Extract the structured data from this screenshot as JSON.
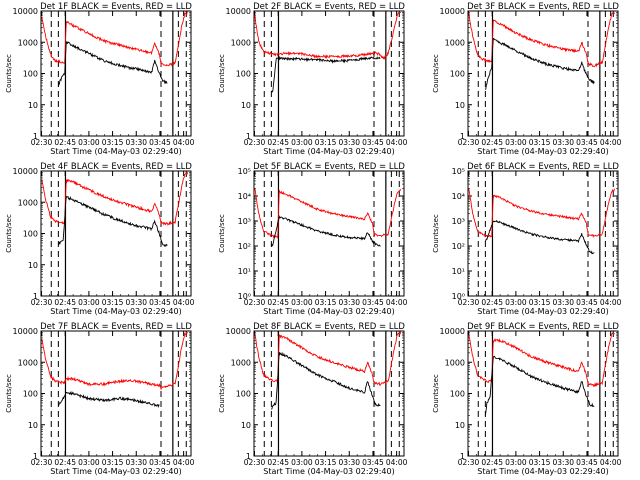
{
  "figure": {
    "xlabel": "Start Time (04-May-03 02:29:40)",
    "ylabel": "Counts/sec",
    "x_ticks": [
      "02:30",
      "02:45",
      "03:00",
      "03:15",
      "03:30",
      "03:45",
      "04:00"
    ]
  },
  "chart_data": [
    {
      "type": "line",
      "title": "Det 1F BLACK = Events, RED = LLD",
      "scale": "log",
      "ylim": [
        1,
        10000
      ],
      "ytick_labels": [
        "1",
        "10",
        "100",
        "1000",
        "10000"
      ],
      "x_unit": "minutes after 02:29:40",
      "lld": [
        [
          0.5,
          6000
        ],
        [
          3,
          1500
        ],
        [
          6,
          400
        ],
        [
          9,
          260
        ],
        [
          12,
          240
        ],
        [
          15,
          220
        ],
        [
          16,
          4500
        ],
        [
          20,
          3500
        ],
        [
          30,
          1900
        ],
        [
          40,
          1100
        ],
        [
          50,
          800
        ],
        [
          60,
          600
        ],
        [
          70,
          450
        ],
        [
          72,
          900
        ],
        [
          75,
          400
        ],
        [
          76,
          200
        ],
        [
          80,
          180
        ],
        [
          85,
          220
        ],
        [
          89,
          3000
        ],
        [
          91,
          8000
        ],
        [
          93,
          9000
        ]
      ],
      "events": [
        [
          11,
          40
        ],
        [
          12,
          55
        ],
        [
          13,
          70
        ],
        [
          14,
          90
        ],
        [
          15,
          100
        ],
        [
          16,
          1000
        ],
        [
          20,
          800
        ],
        [
          30,
          450
        ],
        [
          40,
          250
        ],
        [
          50,
          180
        ],
        [
          60,
          140
        ],
        [
          70,
          110
        ],
        [
          72,
          250
        ],
        [
          75,
          100
        ],
        [
          77,
          60
        ],
        [
          80,
          50
        ]
      ]
    },
    {
      "type": "line",
      "title": "Det 2F BLACK = Events, RED = LLD",
      "scale": "log",
      "ylim": [
        1,
        10000
      ],
      "ytick_labels": [
        "1",
        "10",
        "100",
        "1000",
        "10000"
      ],
      "x_unit": "minutes after 02:29:40",
      "lld": [
        [
          0.5,
          7000
        ],
        [
          3,
          1000
        ],
        [
          6,
          500
        ],
        [
          10,
          450
        ],
        [
          15,
          400
        ],
        [
          20,
          450
        ],
        [
          30,
          420
        ],
        [
          40,
          350
        ],
        [
          50,
          350
        ],
        [
          60,
          360
        ],
        [
          70,
          400
        ],
        [
          77,
          450
        ],
        [
          80,
          400
        ],
        [
          82,
          300
        ],
        [
          85,
          450
        ],
        [
          89,
          3000
        ],
        [
          91,
          8000
        ],
        [
          93,
          9000
        ]
      ],
      "events": [
        [
          11,
          25
        ],
        [
          12,
          30
        ],
        [
          14,
          280
        ],
        [
          16,
          300
        ],
        [
          20,
          300
        ],
        [
          30,
          290
        ],
        [
          40,
          270
        ],
        [
          50,
          250
        ],
        [
          60,
          260
        ],
        [
          70,
          300
        ],
        [
          77,
          320
        ],
        [
          80,
          300
        ]
      ]
    },
    {
      "type": "line",
      "title": "Det 3F BLACK = Events, RED = LLD",
      "scale": "log",
      "ylim": [
        1,
        10000
      ],
      "ytick_labels": [
        "1",
        "10",
        "100",
        "1000",
        "10000"
      ],
      "x_unit": "minutes after 02:29:40",
      "lld": [
        [
          0.5,
          8000
        ],
        [
          3,
          1500
        ],
        [
          6,
          400
        ],
        [
          9,
          300
        ],
        [
          12,
          250
        ],
        [
          15,
          250
        ],
        [
          16,
          5000
        ],
        [
          20,
          4000
        ],
        [
          30,
          2000
        ],
        [
          40,
          1200
        ],
        [
          50,
          800
        ],
        [
          60,
          600
        ],
        [
          70,
          500
        ],
        [
          72,
          1000
        ],
        [
          75,
          400
        ],
        [
          76,
          200
        ],
        [
          80,
          180
        ],
        [
          85,
          220
        ],
        [
          89,
          3000
        ],
        [
          91,
          8000
        ],
        [
          93,
          9000
        ]
      ],
      "events": [
        [
          11,
          30
        ],
        [
          12,
          50
        ],
        [
          13,
          80
        ],
        [
          15,
          150
        ],
        [
          16,
          1300
        ],
        [
          20,
          1000
        ],
        [
          30,
          550
        ],
        [
          40,
          300
        ],
        [
          50,
          200
        ],
        [
          60,
          150
        ],
        [
          70,
          120
        ],
        [
          72,
          220
        ],
        [
          75,
          90
        ],
        [
          77,
          60
        ],
        [
          80,
          50
        ]
      ]
    },
    {
      "type": "line",
      "title": "Det 4F BLACK = Events, RED = LLD",
      "scale": "log",
      "ylim": [
        1,
        10000
      ],
      "ytick_labels": [
        "1",
        "10",
        "100",
        "1000",
        "10000"
      ],
      "x_unit": "minutes after 02:29:40",
      "lld": [
        [
          0.5,
          5000
        ],
        [
          3,
          1200
        ],
        [
          6,
          350
        ],
        [
          9,
          250
        ],
        [
          12,
          220
        ],
        [
          15,
          220
        ],
        [
          16,
          5000
        ],
        [
          20,
          4500
        ],
        [
          30,
          2500
        ],
        [
          40,
          1500
        ],
        [
          50,
          1000
        ],
        [
          60,
          700
        ],
        [
          70,
          500
        ],
        [
          72,
          900
        ],
        [
          75,
          400
        ],
        [
          76,
          220
        ],
        [
          80,
          200
        ],
        [
          85,
          240
        ],
        [
          89,
          3000
        ],
        [
          91,
          8000
        ],
        [
          93,
          9000
        ]
      ],
      "events": [
        [
          11,
          45
        ],
        [
          12,
          50
        ],
        [
          14,
          60
        ],
        [
          16,
          1500
        ],
        [
          20,
          1200
        ],
        [
          30,
          700
        ],
        [
          40,
          400
        ],
        [
          50,
          260
        ],
        [
          60,
          180
        ],
        [
          70,
          140
        ],
        [
          72,
          240
        ],
        [
          75,
          100
        ],
        [
          77,
          45
        ],
        [
          80,
          40
        ]
      ]
    },
    {
      "type": "line",
      "title": "Det 5F BLACK = Events, RED = LLD",
      "scale": "log",
      "ylim": [
        1,
        100000
      ],
      "ytick_labels": [
        "10⁰",
        "10¹",
        "10²",
        "10³",
        "10⁴",
        "10⁵"
      ],
      "x_unit": "minutes after 02:29:40",
      "lld": [
        [
          0.5,
          20000
        ],
        [
          3,
          2000
        ],
        [
          6,
          400
        ],
        [
          9,
          300
        ],
        [
          12,
          250
        ],
        [
          15,
          220
        ],
        [
          16,
          15000
        ],
        [
          20,
          12000
        ],
        [
          30,
          6000
        ],
        [
          40,
          3000
        ],
        [
          50,
          2000
        ],
        [
          60,
          1500
        ],
        [
          70,
          1200
        ],
        [
          72,
          2000
        ],
        [
          75,
          800
        ],
        [
          76,
          300
        ],
        [
          80,
          250
        ],
        [
          85,
          300
        ],
        [
          89,
          5000
        ],
        [
          91,
          15000
        ],
        [
          93,
          18000
        ]
      ],
      "events": [
        [
          11,
          100
        ],
        [
          12,
          120
        ],
        [
          16,
          1500
        ],
        [
          20,
          1200
        ],
        [
          30,
          700
        ],
        [
          40,
          400
        ],
        [
          50,
          280
        ],
        [
          60,
          220
        ],
        [
          70,
          200
        ],
        [
          72,
          350
        ],
        [
          75,
          150
        ],
        [
          77,
          120
        ],
        [
          80,
          100
        ]
      ]
    },
    {
      "type": "line",
      "title": "Det 6F BLACK = Events, RED = LLD",
      "scale": "log",
      "ylim": [
        1,
        100000
      ],
      "ytick_labels": [
        "10⁰",
        "10¹",
        "10²",
        "10³",
        "10⁴",
        "10⁵"
      ],
      "x_unit": "minutes after 02:29:40",
      "lld": [
        [
          0.5,
          20000
        ],
        [
          3,
          2000
        ],
        [
          6,
          400
        ],
        [
          9,
          300
        ],
        [
          12,
          250
        ],
        [
          15,
          250
        ],
        [
          16,
          10000
        ],
        [
          20,
          9000
        ],
        [
          30,
          4000
        ],
        [
          40,
          2500
        ],
        [
          50,
          1800
        ],
        [
          60,
          1500
        ],
        [
          70,
          1200
        ],
        [
          72,
          2000
        ],
        [
          75,
          800
        ],
        [
          76,
          300
        ],
        [
          80,
          250
        ],
        [
          85,
          300
        ],
        [
          89,
          5000
        ],
        [
          91,
          15000
        ],
        [
          93,
          18000
        ]
      ],
      "events": [
        [
          11,
          150
        ],
        [
          12,
          200
        ],
        [
          13,
          300
        ],
        [
          16,
          1000
        ],
        [
          20,
          900
        ],
        [
          30,
          500
        ],
        [
          40,
          300
        ],
        [
          50,
          220
        ],
        [
          60,
          180
        ],
        [
          70,
          160
        ],
        [
          72,
          300
        ],
        [
          75,
          110
        ],
        [
          77,
          60
        ],
        [
          80,
          50
        ]
      ]
    },
    {
      "type": "line",
      "title": "Det 7F BLACK = Events, RED = LLD",
      "scale": "log",
      "ylim": [
        1,
        10000
      ],
      "ytick_labels": [
        "1",
        "10",
        "100",
        "1000",
        "10000"
      ],
      "x_unit": "minutes after 02:29:40",
      "lld": [
        [
          0.5,
          6000
        ],
        [
          3,
          1200
        ],
        [
          6,
          350
        ],
        [
          9,
          250
        ],
        [
          12,
          230
        ],
        [
          15,
          220
        ],
        [
          16,
          300
        ],
        [
          20,
          300
        ],
        [
          30,
          200
        ],
        [
          40,
          200
        ],
        [
          50,
          250
        ],
        [
          60,
          250
        ],
        [
          70,
          200
        ],
        [
          75,
          180
        ],
        [
          76,
          150
        ],
        [
          80,
          180
        ],
        [
          85,
          200
        ],
        [
          89,
          3000
        ],
        [
          91,
          8000
        ],
        [
          93,
          9000
        ]
      ],
      "events": [
        [
          11,
          40
        ],
        [
          12,
          50
        ],
        [
          13,
          60
        ],
        [
          16,
          100
        ],
        [
          20,
          100
        ],
        [
          30,
          70
        ],
        [
          40,
          60
        ],
        [
          50,
          70
        ],
        [
          60,
          60
        ],
        [
          70,
          45
        ],
        [
          75,
          40
        ]
      ]
    },
    {
      "type": "line",
      "title": "Det 8F BLACK = Events, RED = LLD",
      "scale": "log",
      "ylim": [
        1,
        10000
      ],
      "ytick_labels": [
        "1",
        "10",
        "100",
        "1000",
        "10000"
      ],
      "x_unit": "minutes after 02:29:40",
      "lld": [
        [
          0.5,
          8000
        ],
        [
          3,
          1500
        ],
        [
          6,
          400
        ],
        [
          9,
          300
        ],
        [
          12,
          250
        ],
        [
          15,
          250
        ],
        [
          16,
          7000
        ],
        [
          20,
          6000
        ],
        [
          30,
          3000
        ],
        [
          40,
          1500
        ],
        [
          50,
          1000
        ],
        [
          60,
          700
        ],
        [
          70,
          500
        ],
        [
          72,
          1000
        ],
        [
          75,
          400
        ],
        [
          76,
          220
        ],
        [
          80,
          200
        ],
        [
          85,
          250
        ],
        [
          89,
          3000
        ],
        [
          91,
          8000
        ],
        [
          93,
          9000
        ]
      ],
      "events": [
        [
          11,
          30
        ],
        [
          12,
          40
        ],
        [
          14,
          50
        ],
        [
          16,
          2000
        ],
        [
          20,
          1600
        ],
        [
          30,
          800
        ],
        [
          40,
          400
        ],
        [
          50,
          250
        ],
        [
          60,
          150
        ],
        [
          70,
          110
        ],
        [
          72,
          250
        ],
        [
          75,
          80
        ],
        [
          77,
          45
        ],
        [
          80,
          40
        ]
      ]
    },
    {
      "type": "line",
      "title": "Det 9F BLACK = Events, RED = LLD",
      "scale": "log",
      "ylim": [
        1,
        10000
      ],
      "ytick_labels": [
        "1",
        "10",
        "100",
        "1000",
        "10000"
      ],
      "x_unit": "minutes after 02:29:40",
      "lld": [
        [
          0.5,
          8000
        ],
        [
          3,
          1500
        ],
        [
          6,
          400
        ],
        [
          9,
          300
        ],
        [
          12,
          250
        ],
        [
          15,
          250
        ],
        [
          16,
          5000
        ],
        [
          20,
          5000
        ],
        [
          30,
          3000
        ],
        [
          40,
          1500
        ],
        [
          50,
          1000
        ],
        [
          60,
          700
        ],
        [
          70,
          500
        ],
        [
          72,
          1000
        ],
        [
          75,
          400
        ],
        [
          76,
          200
        ],
        [
          80,
          180
        ],
        [
          85,
          220
        ],
        [
          89,
          3000
        ],
        [
          91,
          8000
        ],
        [
          93,
          9000
        ]
      ],
      "events": [
        [
          11,
          20
        ],
        [
          12,
          50
        ],
        [
          14,
          80
        ],
        [
          16,
          1500
        ],
        [
          20,
          1300
        ],
        [
          30,
          700
        ],
        [
          40,
          350
        ],
        [
          50,
          220
        ],
        [
          60,
          150
        ],
        [
          70,
          110
        ],
        [
          72,
          250
        ],
        [
          75,
          80
        ],
        [
          77,
          45
        ],
        [
          80,
          40
        ]
      ]
    }
  ],
  "colors": {
    "lld": "#ff0000",
    "events": "#000000",
    "axes": "#000000"
  }
}
